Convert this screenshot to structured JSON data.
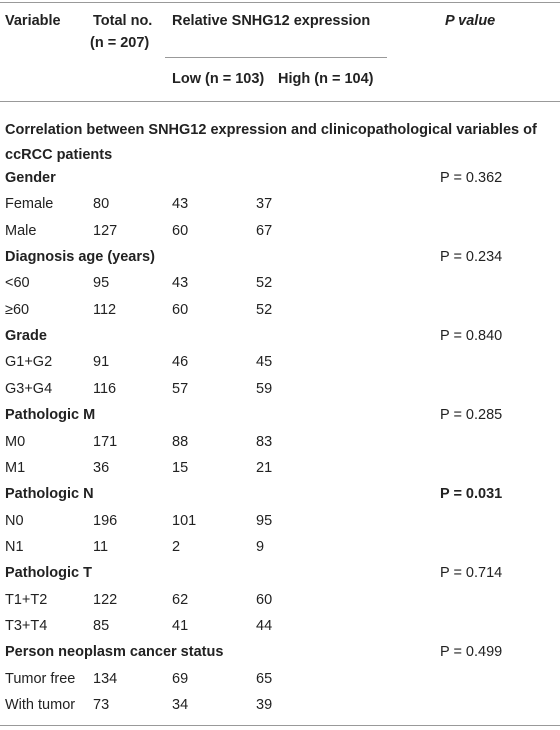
{
  "header": {
    "variable": "Variable",
    "total": {
      "label": "Total no.",
      "n": "(n = 207)"
    },
    "relative": "Relative SNHG12 expression",
    "low": "Low (n = 103)",
    "high": "High (n = 104)",
    "p": "P value"
  },
  "caption": "Correlation between SNHG12 expression and clinicopathological variables of ccRCC patients",
  "groups": [
    {
      "name": "Gender",
      "p": "P = 0.362",
      "rows": [
        [
          "Female",
          80,
          43,
          37
        ],
        [
          "Male",
          127,
          60,
          67
        ]
      ]
    },
    {
      "name": "Diagnosis age (years)",
      "p": "P = 0.234",
      "rows": [
        [
          "<60",
          95,
          43,
          52
        ],
        [
          "≥60",
          112,
          60,
          52
        ]
      ]
    },
    {
      "name": "Grade",
      "p": "P = 0.840",
      "rows": [
        [
          "G1+G2",
          91,
          46,
          45
        ],
        [
          "G3+G4",
          116,
          57,
          59
        ]
      ]
    },
    {
      "name": "Pathologic M",
      "p": "P = 0.285",
      "rows": [
        [
          "M0",
          171,
          88,
          83
        ],
        [
          "M1",
          36,
          15,
          21
        ]
      ]
    },
    {
      "name": "Pathologic N",
      "p": "P = 0.031",
      "bold": true,
      "rows": [
        [
          "N0",
          196,
          101,
          95
        ],
        [
          "N1",
          11,
          2,
          9
        ]
      ]
    },
    {
      "name": "Pathologic T",
      "p": "P = 0.714",
      "rows": [
        [
          "T1+T2",
          122,
          62,
          60
        ],
        [
          "T3+T4",
          85,
          41,
          44
        ]
      ]
    },
    {
      "name": "Person neoplasm cancer status",
      "p": "P = 0.499",
      "rows": [
        [
          "Tumor free",
          134,
          69,
          65
        ],
        [
          "With tumor",
          73,
          34,
          39
        ]
      ]
    }
  ]
}
